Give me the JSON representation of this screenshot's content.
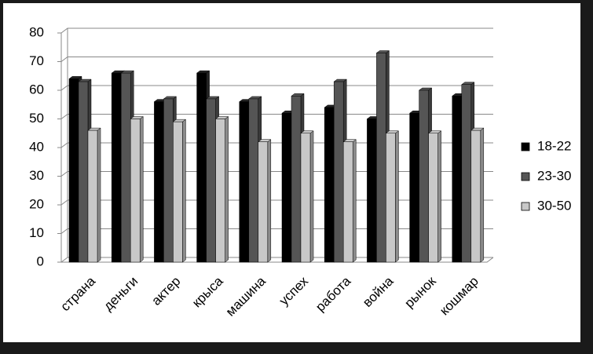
{
  "chart_data": {
    "type": "bar",
    "categories": [
      "страна",
      "деньги",
      "актер",
      "крыса",
      "машина",
      "успех",
      "работа",
      "война",
      "рынок",
      "кошмар"
    ],
    "series": [
      {
        "name": "18-22",
        "color": "#000000",
        "values": [
          64,
          66,
          56,
          66,
          56,
          52,
          54,
          50,
          52,
          58
        ]
      },
      {
        "name": "23-30",
        "color": "#555555",
        "values": [
          63,
          66,
          57,
          57,
          57,
          58,
          63,
          73,
          60,
          62
        ]
      },
      {
        "name": "30-50",
        "color": "#c8c8c8",
        "values": [
          46,
          50,
          49,
          50,
          42,
          45,
          42,
          45,
          45,
          46
        ]
      }
    ],
    "ylim": [
      0,
      80
    ],
    "yticks": [
      0,
      10,
      20,
      30,
      40,
      50,
      60,
      70,
      80
    ],
    "grid": true,
    "legend": "right"
  }
}
